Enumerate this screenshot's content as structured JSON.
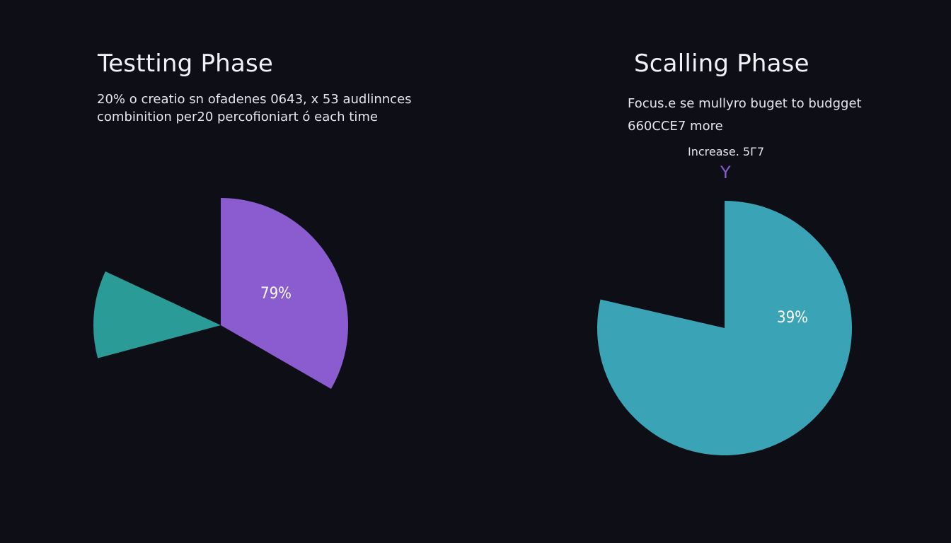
{
  "chart_data": [
    {
      "type": "pie",
      "title": "Testting Phase",
      "subtitle": [
        "20% o creatio sn ofadenes 0643, x 53 audlinnces",
        "combinition per20 percofioniart ó each time"
      ],
      "slices": [
        {
          "value": 33,
          "label": "79%",
          "color": "#8a5cd0",
          "start_deg": 0,
          "end_deg": 120
        },
        {
          "value": 11,
          "label": "",
          "color": "#2a9b96",
          "start_deg": 255,
          "end_deg": 295
        }
      ]
    },
    {
      "type": "pie",
      "title": "Scalling Phase",
      "subtitle": [
        "Focus.e se mullyro buget to budgget",
        "660CCE7 more"
      ],
      "annotation": "Increase. 5Г7",
      "annotation_marker": "Y",
      "slices": [
        {
          "value": 79,
          "label": "39%",
          "color": "#3aa4b6",
          "start_deg": 0,
          "end_deg": 283
        }
      ]
    }
  ]
}
